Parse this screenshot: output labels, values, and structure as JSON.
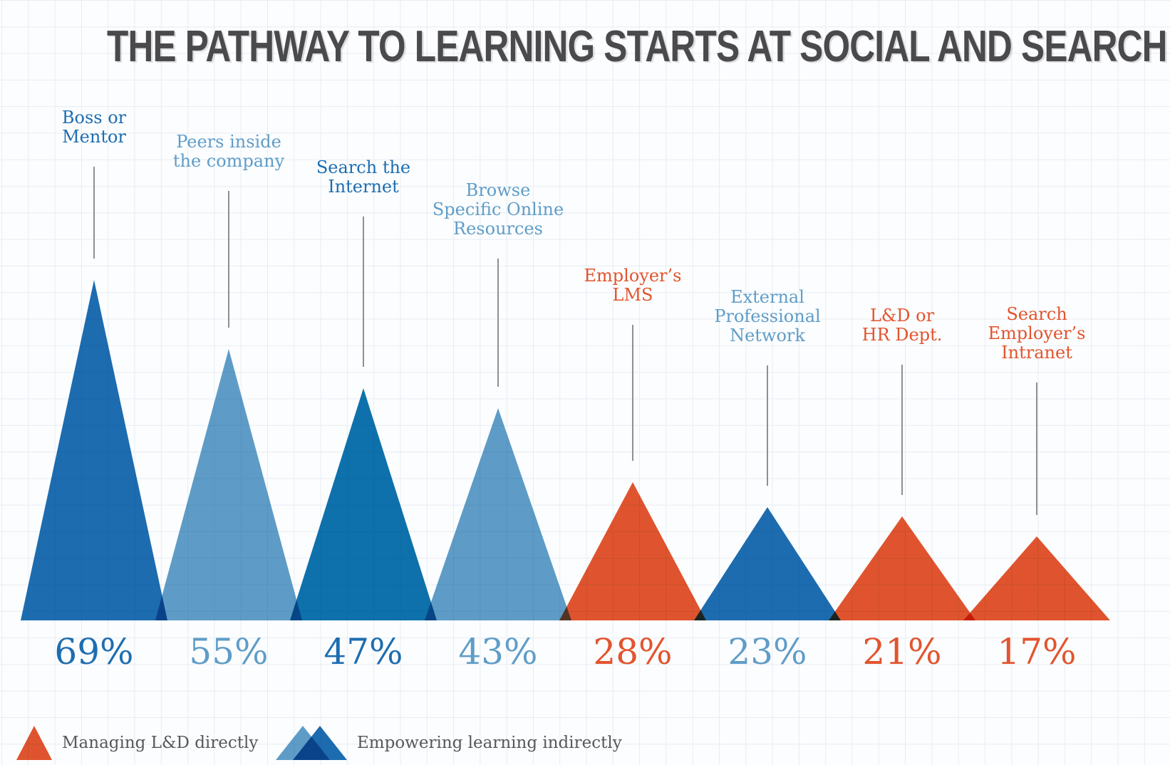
{
  "title": "THE PATHWAY TO LEARNING STARTS AT SOCIAL AND SEARCH",
  "colors": {
    "blue_dark": "#1d6db1",
    "blue_mid": "#0e72ad",
    "blue_light": "#5f9dc8",
    "orange": "#e2542e",
    "title_text": "#4a4a4c",
    "legend_text": "#58585a",
    "leader_line": "#8f8f8f",
    "grid_line": "#e7edf4",
    "background": "#fcfdfe"
  },
  "chart_data": {
    "type": "bar",
    "variant": "overlapping-triangle-peaks",
    "title": "THE PATHWAY TO LEARNING STARTS AT SOCIAL AND SEARCH",
    "xlabel": "",
    "ylabel": "",
    "ylim": [
      0,
      100
    ],
    "grid": true,
    "legend_position": "bottom",
    "categories": [
      "Boss or Mentor",
      "Peers inside the company",
      "Search the Internet",
      "Browse Specific Online Resources",
      "Employer’s LMS",
      "External Professional Network",
      "L&D or HR Dept.",
      "Search Employer’s Intranet"
    ],
    "values": [
      69,
      55,
      47,
      43,
      28,
      23,
      21,
      17
    ],
    "value_labels": [
      "69%",
      "55%",
      "47%",
      "43%",
      "28%",
      "23%",
      "21%",
      "17%"
    ],
    "groups": [
      "empowering-indirectly",
      "empowering-indirectly",
      "empowering-indirectly",
      "empowering-indirectly",
      "managing-directly",
      "empowering-indirectly",
      "managing-directly",
      "managing-directly"
    ],
    "items": [
      {
        "label_lines": [
          "Boss or",
          "Mentor"
        ],
        "value": 69,
        "value_label": "69%",
        "tri_color": "blue_dark",
        "text_color": "blue_dark",
        "group": "empowering-indirectly"
      },
      {
        "label_lines": [
          "Peers inside",
          "the company"
        ],
        "value": 55,
        "value_label": "55%",
        "tri_color": "blue_light",
        "text_color": "blue_light",
        "group": "empowering-indirectly"
      },
      {
        "label_lines": [
          "Search the",
          "Internet"
        ],
        "value": 47,
        "value_label": "47%",
        "tri_color": "blue_mid",
        "text_color": "blue_dark",
        "group": "empowering-indirectly"
      },
      {
        "label_lines": [
          "Browse",
          "Specific Online",
          "Resources"
        ],
        "value": 43,
        "value_label": "43%",
        "tri_color": "blue_light",
        "text_color": "blue_light",
        "group": "empowering-indirectly"
      },
      {
        "label_lines": [
          "Employer’s",
          "LMS"
        ],
        "value": 28,
        "value_label": "28%",
        "tri_color": "orange",
        "text_color": "orange",
        "group": "managing-directly"
      },
      {
        "label_lines": [
          "External",
          "Professional",
          "Network"
        ],
        "value": 23,
        "value_label": "23%",
        "tri_color": "blue_dark",
        "text_color": "blue_light",
        "group": "empowering-indirectly"
      },
      {
        "label_lines": [
          "L&D or",
          "HR Dept."
        ],
        "value": 21,
        "value_label": "21%",
        "tri_color": "orange",
        "text_color": "orange",
        "group": "managing-directly"
      },
      {
        "label_lines": [
          "Search",
          "Employer’s",
          "Intranet"
        ],
        "value": 17,
        "value_label": "17%",
        "tri_color": "orange",
        "text_color": "orange",
        "group": "managing-directly"
      }
    ]
  },
  "legend": [
    {
      "icon": "orange-triangle-icon",
      "label": "Managing L&D directly",
      "colors": [
        "#e2542e"
      ]
    },
    {
      "icon": "blue-triangles-icon",
      "label": "Empowering learning indirectly",
      "colors": [
        "#5f9dc8",
        "#1d6db1"
      ]
    }
  ]
}
